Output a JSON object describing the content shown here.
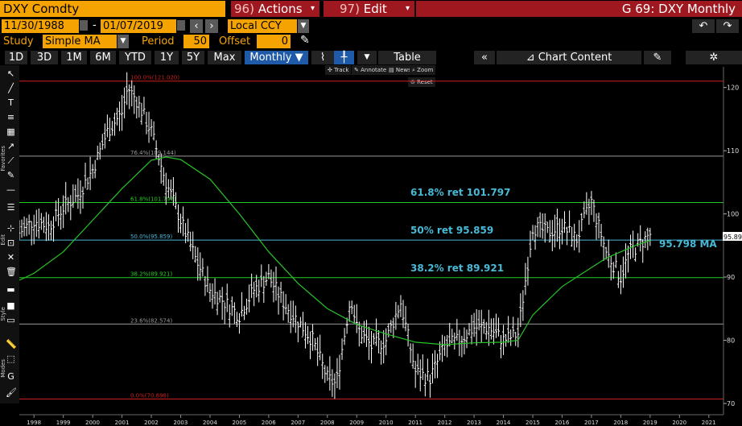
{
  "header": {
    "ticker": "DXY Comdty",
    "actions": {
      "num": "96)",
      "label": "Actions"
    },
    "edit": {
      "num": "97)",
      "label": "Edit"
    },
    "title": "G 69: DXY Monthly"
  },
  "params": {
    "start_date": "11/30/1988",
    "dash": "-",
    "end_date": "01/07/2019",
    "currency": "Local CCY",
    "study_label": "Study",
    "study_value": "Simple MA",
    "period_label": "Period",
    "period_value": "50",
    "offset_label": "Offset",
    "offset_value": "0"
  },
  "toolbar": {
    "ranges": [
      "1D",
      "3D",
      "1M",
      "6M",
      "YTD",
      "1Y",
      "5Y",
      "Max"
    ],
    "frequency": "Monthly",
    "table": "Table",
    "chart_content": "Chart Content"
  },
  "mini_toolbar": {
    "track": "Track",
    "annotate": "Annotate",
    "news": "News",
    "zoom": "Zoom",
    "reset": "Reset"
  },
  "side_labels": {
    "favorites": "Favorites",
    "edit": "Edit",
    "style": "Style",
    "modes": "Modes"
  },
  "annotations": {
    "fib618": "61.8% ret 101.797",
    "fib50": "50% ret 95.859",
    "fib382": "38.2% ret 89.921",
    "ma": "95.798  MA",
    "last_price": "95.890"
  },
  "colors": {
    "accent": "#f5a300",
    "menu": "#a0181f",
    "selected": "#1f5aa8",
    "price": "#ffffff",
    "ma": "#27c427",
    "fib_green": "#22cc22",
    "fib_red": "#cc1f1f",
    "fib_cyan": "#48b9d6",
    "fib_gray": "#9a9a9a"
  },
  "chart_data": {
    "type": "line",
    "ylim": [
      70,
      122
    ],
    "y_ticks": [
      70,
      80,
      90,
      100,
      110,
      120
    ],
    "x_tick_labels": [
      "1998",
      "1999",
      "2000",
      "2001",
      "2002",
      "2003",
      "2004",
      "2005",
      "2006",
      "2007",
      "2008",
      "2009",
      "2010",
      "2011",
      "2012",
      "2013",
      "2014",
      "2015",
      "2016",
      "2017",
      "2018",
      "2019",
      "2020",
      "2021"
    ],
    "fib_levels": [
      {
        "label": "100.0%(121.020)",
        "value": 121.02,
        "color": "red"
      },
      {
        "label": "76.4%(109.144)",
        "value": 109.144,
        "color": "gray"
      },
      {
        "label": "61.8%(101.797)",
        "value": 101.797,
        "color": "green"
      },
      {
        "label": "50.0%(95.859)",
        "value": 95.859,
        "color": "cyan"
      },
      {
        "label": "38.2%(89.921)",
        "value": 89.921,
        "color": "green"
      },
      {
        "label": "23.6%(82.574)",
        "value": 82.574,
        "color": "gray"
      },
      {
        "label": "0.0%(70.698)",
        "value": 70.698,
        "color": "red"
      }
    ],
    "series": [
      {
        "name": "DXY",
        "x": [
          1997.5,
          1998,
          1998.5,
          1999,
          1999.5,
          2000,
          2000.5,
          2001,
          2001.2,
          2001.5,
          2002,
          2002.5,
          2003,
          2003.5,
          2004,
          2004.5,
          2005,
          2005.5,
          2006,
          2006.5,
          2007,
          2007.5,
          2008,
          2008.3,
          2008.8,
          2009,
          2009.5,
          2010,
          2010.5,
          2011,
          2011.5,
          2012,
          2012.5,
          2013,
          2013.5,
          2014,
          2014.5,
          2015,
          2015.5,
          2016,
          2016.5,
          2017,
          2017.5,
          2018,
          2018.3,
          2018.6,
          2019
        ],
        "y": [
          97,
          99,
          98,
          101,
          103,
          107,
          113,
          116,
          120,
          118,
          113,
          105,
          99,
          93,
          88,
          86,
          84,
          88,
          90,
          86,
          83,
          80,
          74,
          73,
          87,
          82,
          79,
          80,
          86,
          75,
          74,
          79,
          80,
          82,
          82,
          80,
          81,
          98,
          97,
          98,
          96,
          102,
          94,
          90,
          94,
          95,
          96.8
        ]
      },
      {
        "name": "MA",
        "x": [
          1997.5,
          1998,
          1999,
          2000,
          2001,
          2002,
          2002.5,
          2003,
          2004,
          2005,
          2006,
          2007,
          2008,
          2009,
          2010,
          2011,
          2012,
          2013,
          2014,
          2014.5,
          2015,
          2016,
          2017,
          2017.5,
          2018,
          2018.5,
          2019
        ],
        "y": [
          89.5,
          90.6,
          94,
          99,
          104,
          108.5,
          109,
          108.6,
          105.5,
          100,
          94,
          89,
          85,
          82.5,
          81,
          79.7,
          79.3,
          79.6,
          79.7,
          80,
          84,
          88.5,
          91.5,
          93,
          94,
          95,
          95.8
        ]
      }
    ]
  }
}
